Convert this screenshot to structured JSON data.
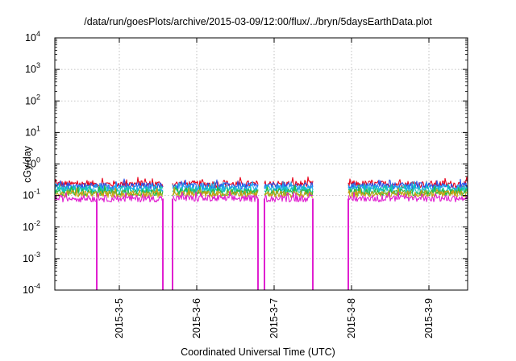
{
  "chart_data": {
    "type": "line",
    "title": "/data/run/goesPlots/archive/2015-03-09/12:00/flux/../bryn/5daysEarthData.plot",
    "xlabel": "Coordinated Universal Time (UTC)",
    "ylabel": "cGy/day",
    "yscale": "log",
    "ylim": [
      0.0001,
      10000
    ],
    "xlim": [
      "2015-03-04 04:00",
      "2015-03-09 12:00"
    ],
    "grid": true,
    "y_ticks": [
      {
        "mant": "10",
        "exp": "-4"
      },
      {
        "mant": "10",
        "exp": "-3"
      },
      {
        "mant": "10",
        "exp": "-2"
      },
      {
        "mant": "10",
        "exp": "-1"
      },
      {
        "mant": "10",
        "exp": "0"
      },
      {
        "mant": "10",
        "exp": "1"
      },
      {
        "mant": "10",
        "exp": "2"
      },
      {
        "mant": "10",
        "exp": "3"
      },
      {
        "mant": "10",
        "exp": "4"
      }
    ],
    "x_ticks": [
      "2015-3-5",
      "2015-3-6",
      "2015-3-7",
      "2015-3-8",
      "2015-3-9"
    ],
    "data_gaps": [
      [
        "2015-03-05 13:30",
        "2015-03-05 16:30"
      ],
      [
        "2015-03-06 19:00",
        "2015-03-06 21:00"
      ],
      [
        "2015-03-07 12:00",
        "2015-03-07 23:00"
      ]
    ],
    "dropouts": [
      "2015-03-04 17:00",
      "2015-03-05 13:30",
      "2015-03-05 16:30",
      "2015-03-06 19:00",
      "2015-03-06 21:00",
      "2015-03-07 12:00",
      "2015-03-07 23:00"
    ],
    "series": [
      {
        "color": "#e8001a",
        "level": 0.23
      },
      {
        "color": "#2b50e8",
        "level": 0.2
      },
      {
        "color": "#1aa8f0",
        "level": 0.17
      },
      {
        "color": "#12c8b0",
        "level": 0.145
      },
      {
        "color": "#2ab83a",
        "level": 0.125
      },
      {
        "color": "#c8a010",
        "level": 0.11
      },
      {
        "color": "#e020d0",
        "level": 0.08
      }
    ]
  }
}
